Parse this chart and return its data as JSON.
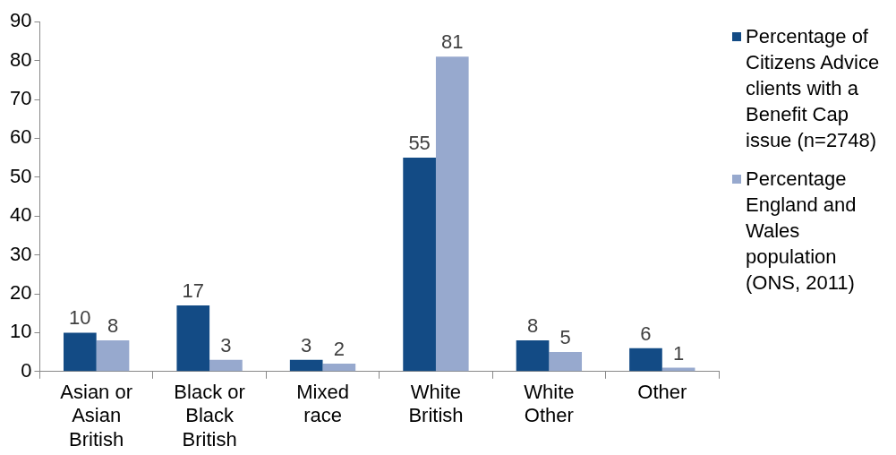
{
  "chart_data": {
    "type": "bar",
    "categories": [
      "Asian or Asian British",
      "Black or Black British",
      "Mixed race",
      "White British",
      "White Other",
      "Other"
    ],
    "series": [
      {
        "name": "Percentage of Citizens Advice clients with a Benefit Cap issue (n=2748)",
        "color": "#134b85",
        "values": [
          10,
          17,
          3,
          55,
          8,
          6
        ]
      },
      {
        "name": "Percentage England and Wales population (ONS, 2011)",
        "color": "#97a9ce",
        "values": [
          8,
          3,
          2,
          81,
          5,
          1
        ]
      }
    ],
    "ylim": [
      0,
      90
    ],
    "yticks": [
      0,
      10,
      20,
      30,
      40,
      50,
      60,
      70,
      80,
      90
    ],
    "grid": false,
    "legend": "right",
    "data_labels": true
  }
}
